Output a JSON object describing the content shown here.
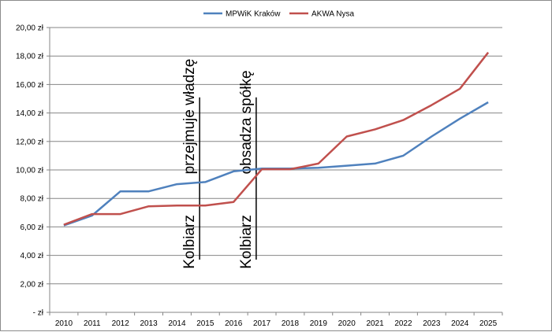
{
  "chart_data": {
    "type": "line",
    "title": "",
    "xlabel": "",
    "ylabel": "",
    "x": [
      "2010",
      "2011",
      "2012",
      "2013",
      "2014",
      "2015",
      "2016",
      "2017",
      "2018",
      "2019",
      "2020",
      "2021",
      "2022",
      "2023",
      "2024",
      "2025"
    ],
    "ylim": [
      0,
      20
    ],
    "yticks": [
      0,
      2,
      4,
      6,
      8,
      10,
      12,
      14,
      16,
      18,
      20
    ],
    "ytick_labels": [
      "-  zł",
      "2,00 zł",
      "4,00 zł",
      "6,00 zł",
      "8,00 zł",
      "10,00 zł",
      "12,00 zł",
      "14,00 zł",
      "16,00 zł",
      "18,00 zł",
      "20,00 zł"
    ],
    "grid": true,
    "legend_position": "top",
    "series": [
      {
        "name": "MPWiK Kraków",
        "color": "#4f81bd",
        "values": [
          6.1,
          6.8,
          8.5,
          8.5,
          9.0,
          9.15,
          9.9,
          10.1,
          10.1,
          10.15,
          10.3,
          10.45,
          11.0,
          12.35,
          13.6,
          14.75
        ]
      },
      {
        "name": "AKWA Nysa",
        "color": "#c0504d",
        "values": [
          6.15,
          6.9,
          6.9,
          7.45,
          7.5,
          7.5,
          7.75,
          10.05,
          10.05,
          10.45,
          12.35,
          12.85,
          13.5,
          14.55,
          15.7,
          18.25
        ]
      }
    ],
    "annotations": [
      {
        "x_index": 4.8,
        "lines": [
          "Kolbiarz",
          "przejmuje władzę"
        ]
      },
      {
        "x_index": 6.8,
        "lines": [
          "Kolbiarz",
          "obsadza spółkę"
        ]
      }
    ]
  }
}
